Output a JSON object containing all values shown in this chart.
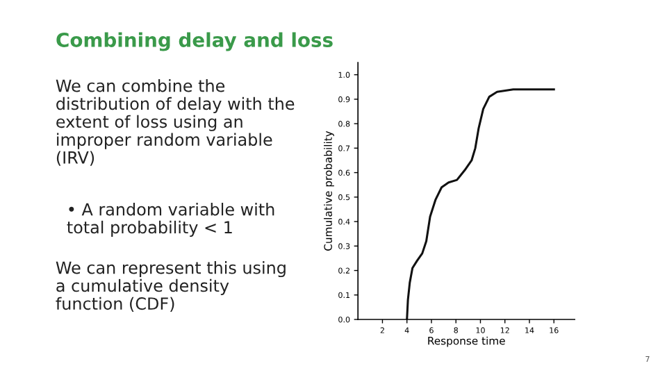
{
  "chart_data": {
    "type": "line",
    "title": "Combining delay and loss",
    "xlabel": "Response time",
    "ylabel": "Cumulative probability",
    "annotations": [
      "We can combine the distribution of delay with the extent of loss using an improper random variable (IRV)",
      "• A random variable with total probability < 1",
      "We can represent this using a cumulative density function (CDF)",
      "7"
    ],
    "x": [
      4.0,
      4.08,
      4.23,
      4.45,
      4.83,
      5.25,
      5.58,
      5.89,
      6.34,
      6.83,
      7.4,
      8.08,
      8.72,
      9.28,
      9.58,
      9.85,
      10.23,
      10.72,
      11.36,
      12.68,
      14.19,
      16.0
    ],
    "series": [
      {
        "color": "#111111",
        "values": [
          0.0,
          0.08,
          0.15,
          0.21,
          0.24,
          0.27,
          0.32,
          0.42,
          0.49,
          0.54,
          0.56,
          0.57,
          0.61,
          0.65,
          0.7,
          0.78,
          0.86,
          0.91,
          0.93,
          0.94,
          0.94,
          0.94
        ]
      }
    ],
    "xlim": [
      0,
      17.7
    ],
    "ylim": [
      0,
      1.05
    ],
    "xticks": [
      2,
      4,
      6,
      8,
      10,
      12,
      14,
      16
    ],
    "yticks": [
      {
        "value": 0,
        "label": "0.0"
      },
      {
        "value": 0.1,
        "label": "0.1"
      },
      {
        "value": 0.2,
        "label": "0.2"
      },
      {
        "value": 0.3,
        "label": "0.3"
      },
      {
        "value": 0.4,
        "label": "0.4"
      },
      {
        "value": 0.5,
        "label": "0.5"
      },
      {
        "value": 0.6,
        "label": "0.6"
      },
      {
        "value": 0.7,
        "label": "0.7"
      },
      {
        "value": 0.8,
        "label": "0.8"
      },
      {
        "value": 0.9,
        "label": "0.9"
      },
      {
        "value": 1.0,
        "label": "1.0"
      }
    ],
    "grid": false,
    "legend": false,
    "marker": "none",
    "line_style": "solid"
  }
}
